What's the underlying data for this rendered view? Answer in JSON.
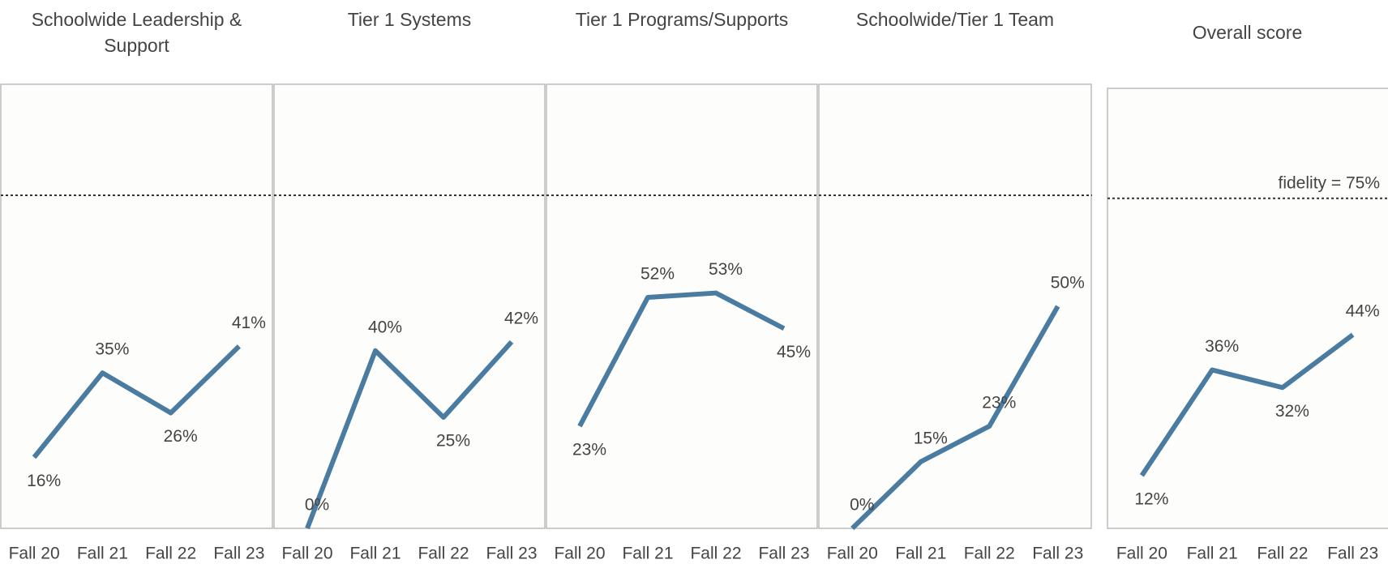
{
  "chart_data": [
    {
      "type": "line",
      "title": "Schoolwide Leadership & Support",
      "categories": [
        "Fall 20",
        "Fall 21",
        "Fall 22",
        "Fall 23"
      ],
      "values": [
        16,
        35,
        26,
        41
      ],
      "value_labels": [
        "16%",
        "35%",
        "26%",
        "41%"
      ],
      "ylim": [
        0,
        100
      ],
      "reference_line": 75,
      "color": "#4a7ba0"
    },
    {
      "type": "line",
      "title": "Tier 1 Systems",
      "categories": [
        "Fall 20",
        "Fall 21",
        "Fall 22",
        "Fall 23"
      ],
      "values": [
        0,
        40,
        25,
        42
      ],
      "value_labels": [
        "0%",
        "40%",
        "25%",
        "42%"
      ],
      "ylim": [
        0,
        100
      ],
      "reference_line": 75,
      "color": "#4a7ba0"
    },
    {
      "type": "line",
      "title": "Tier 1 Programs/Supports",
      "categories": [
        "Fall 20",
        "Fall 21",
        "Fall 22",
        "Fall 23"
      ],
      "values": [
        23,
        52,
        53,
        45
      ],
      "value_labels": [
        "23%",
        "52%",
        "53%",
        "45%"
      ],
      "ylim": [
        0,
        100
      ],
      "reference_line": 75,
      "color": "#4a7ba0"
    },
    {
      "type": "line",
      "title": "Schoolwide/Tier 1 Team",
      "categories": [
        "Fall 20",
        "Fall 21",
        "Fall 22",
        "Fall 23"
      ],
      "values": [
        0,
        15,
        23,
        50
      ],
      "value_labels": [
        "0%",
        "15%",
        "23%",
        "50%"
      ],
      "ylim": [
        0,
        100
      ],
      "reference_line": 75,
      "color": "#4a7ba0"
    },
    {
      "type": "line",
      "title": "Overall score",
      "categories": [
        "Fall 20",
        "Fall 21",
        "Fall 22",
        "Fall 23"
      ],
      "values": [
        12,
        36,
        32,
        44
      ],
      "value_labels": [
        "12%",
        "36%",
        "32%",
        "44%"
      ],
      "ylim": [
        0,
        100
      ],
      "reference_line": 75,
      "annotation": "fidelity = 75%",
      "color": "#4a7ba0"
    }
  ]
}
